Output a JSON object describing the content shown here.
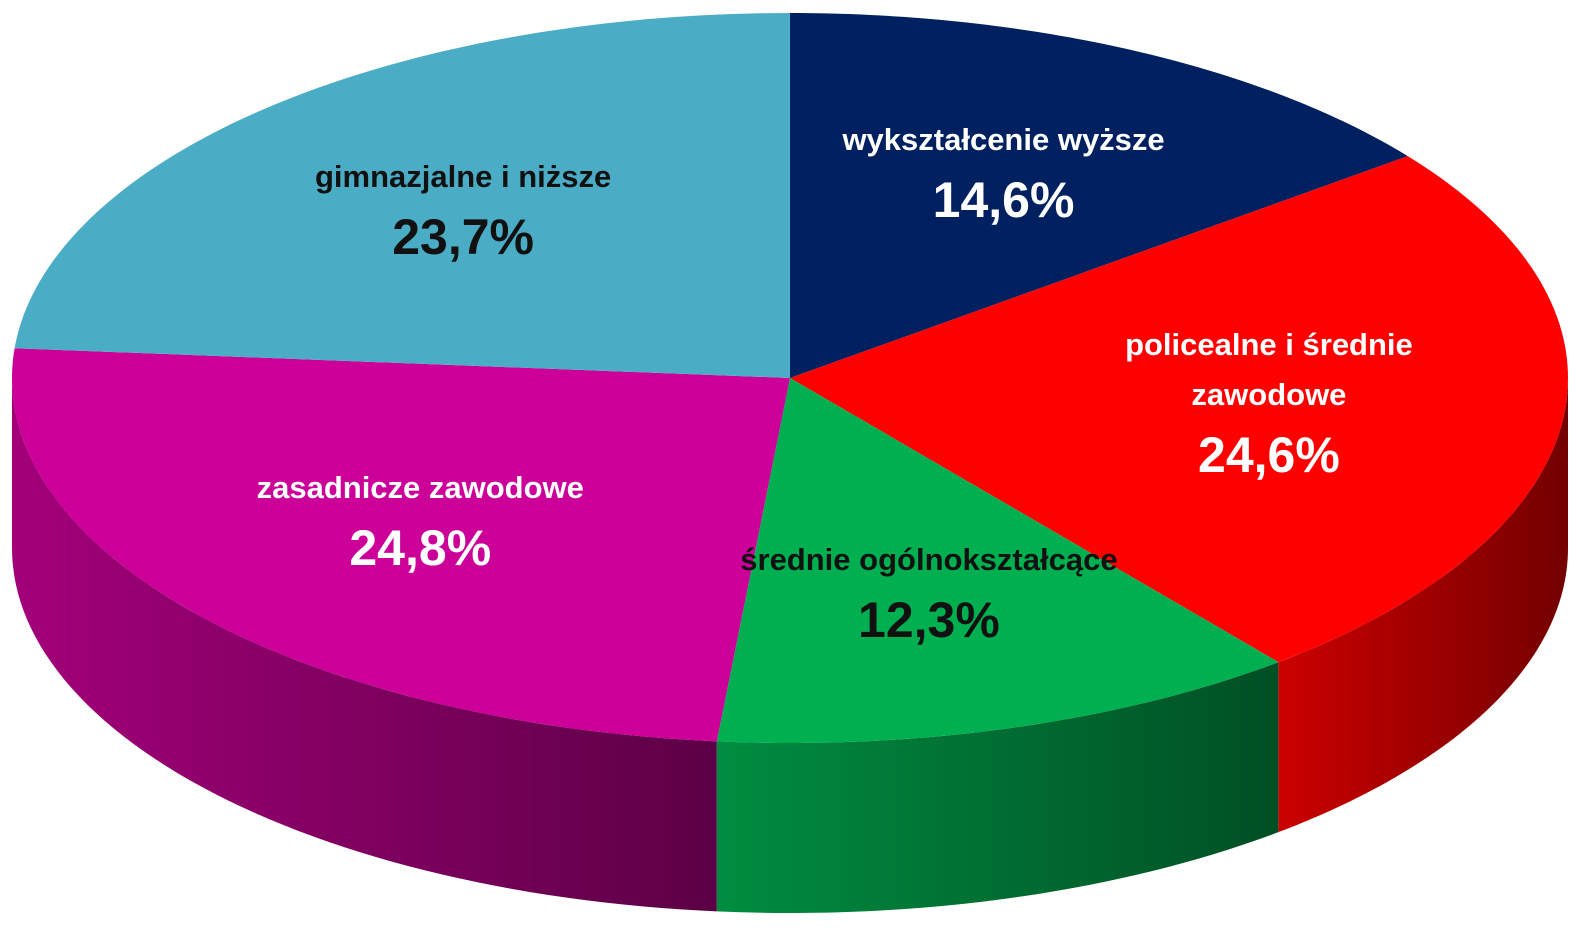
{
  "chart_data": {
    "type": "pie",
    "categories": [
      "wykształcenie wyższe",
      "policealne i średnie zawodowe",
      "średnie ogólnokształcące",
      "zasadnicze zawodowe",
      "gimnazjalne i niższe"
    ],
    "values": [
      14.6,
      24.6,
      12.3,
      24.8,
      23.7
    ],
    "value_labels": [
      "14,6%",
      "24,6%",
      "12,3%",
      "24,8%",
      "23,7%"
    ],
    "colors": [
      "#002060",
      "#ff0000",
      "#00b050",
      "#cc0099",
      "#4bacc6"
    ]
  }
}
